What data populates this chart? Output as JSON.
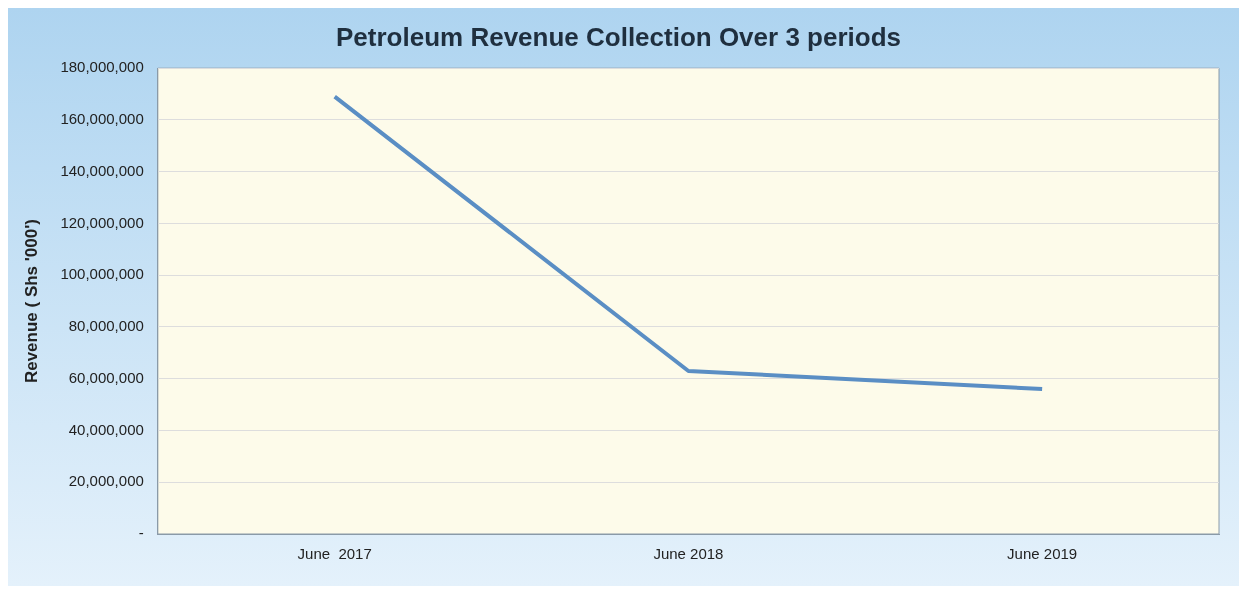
{
  "chart_data": {
    "type": "line",
    "title": "Petroleum Revenue Collection Over 3 periods",
    "ylabel": "Revenue ( Shs '000')",
    "categories": [
      "June  2017",
      "June 2018",
      "June 2019"
    ],
    "series": [
      {
        "color": "#5a8ec4",
        "values": [
          169000000,
          63000000,
          56000000
        ]
      }
    ],
    "ylim": [
      0,
      180000000
    ],
    "yticks": [
      {
        "value": 0,
        "label": "-"
      },
      {
        "value": 20000000,
        "label": "20,000,000"
      },
      {
        "value": 40000000,
        "label": "40,000,000"
      },
      {
        "value": 60000000,
        "label": "60,000,000"
      },
      {
        "value": 80000000,
        "label": "80,000,000"
      },
      {
        "value": 100000000,
        "label": "100,000,000"
      },
      {
        "value": 120000000,
        "label": "120,000,000"
      },
      {
        "value": 140000000,
        "label": "140,000,000"
      },
      {
        "value": 160000000,
        "label": "160,000,000"
      },
      {
        "value": 180000000,
        "label": "180,000,000"
      }
    ],
    "grid": "y",
    "legend": false,
    "marker": "none",
    "line_style": "solid"
  }
}
